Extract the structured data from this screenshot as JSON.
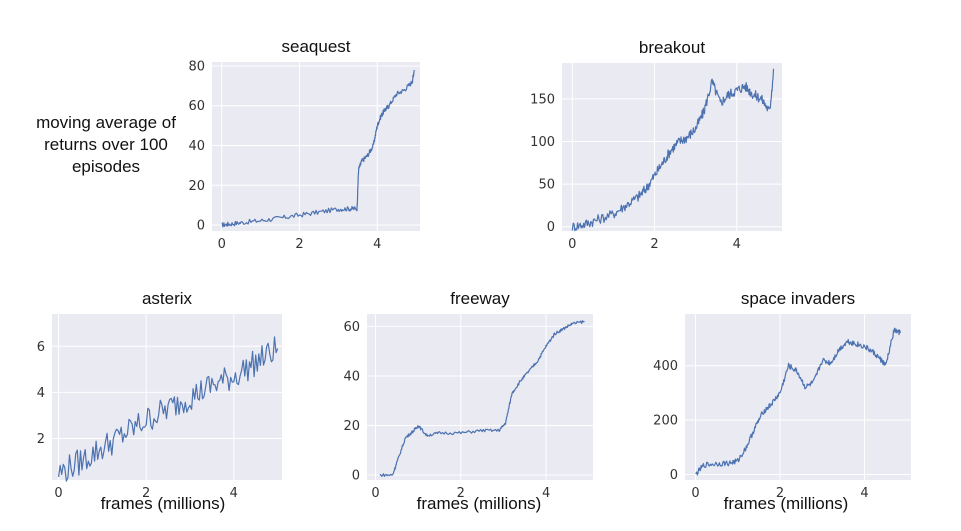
{
  "figure": {
    "ylabel_lines": [
      "moving average of",
      "returns over 100",
      "episodes"
    ],
    "xlabel": "frames (millions)"
  },
  "colors": {
    "line": "#4c72b0",
    "panel": "#eaeaf2",
    "grid": "#ffffff",
    "text": "#333333"
  },
  "chart_data": [
    {
      "type": "line",
      "title": "seaquest",
      "xlabel": "",
      "ylabel": "moving average of returns over 100 episodes",
      "xlim": [
        -0.25,
        5.1
      ],
      "ylim": [
        -3,
        82
      ],
      "grid": true,
      "xticks": [
        0,
        2,
        4
      ],
      "yticks": [
        0,
        20,
        40,
        60,
        80
      ],
      "series": [
        {
          "x": [
            0,
            0.2,
            0.5,
            1.0,
            1.5,
            2.0,
            2.5,
            3.0,
            3.3,
            3.48,
            3.52,
            3.6,
            3.75,
            3.9,
            4.0,
            4.1,
            4.2,
            4.3,
            4.5,
            4.7,
            4.9,
            4.95
          ],
          "y": [
            0,
            0.5,
            1.2,
            2.2,
            3.5,
            5.0,
            6.5,
            8.0,
            8.2,
            8.3,
            28,
            32,
            35,
            40,
            50,
            55,
            58,
            60,
            66,
            68,
            72,
            78
          ],
          "noise": 1.2
        }
      ]
    },
    {
      "type": "line",
      "title": "breakout",
      "xlabel": "",
      "ylabel": "",
      "xlim": [
        -0.25,
        5.1
      ],
      "ylim": [
        -5,
        192
      ],
      "grid": true,
      "xticks": [
        0,
        2,
        4
      ],
      "yticks": [
        0,
        50,
        100,
        150
      ],
      "series": [
        {
          "x": [
            0,
            0.3,
            0.6,
            1.0,
            1.3,
            1.6,
            1.8,
            2.0,
            2.2,
            2.4,
            2.6,
            2.8,
            3.0,
            3.2,
            3.4,
            3.6,
            3.8,
            4.0,
            4.2,
            4.4,
            4.6,
            4.8,
            4.9
          ],
          "y": [
            0,
            3,
            8,
            15,
            25,
            35,
            45,
            60,
            75,
            90,
            100,
            105,
            115,
            135,
            170,
            145,
            155,
            160,
            165,
            155,
            150,
            135,
            185
          ],
          "noise": 6
        }
      ]
    },
    {
      "type": "line",
      "title": "asterix",
      "xlabel": "frames (millions)",
      "ylabel": "",
      "xlim": [
        -0.15,
        5.1
      ],
      "ylim": [
        0.2,
        7.4
      ],
      "grid": true,
      "xticks": [
        0,
        2,
        4
      ],
      "yticks": [
        2,
        4,
        6
      ],
      "series": [
        {
          "x": [
            0,
            0.5,
            1.0,
            1.5,
            2.0,
            2.5,
            3.0,
            3.5,
            4.0,
            4.5,
            5.0
          ],
          "y": [
            0.5,
            1.0,
            1.6,
            2.2,
            2.8,
            3.3,
            3.8,
            4.3,
            4.7,
            5.3,
            5.9
          ],
          "noise": 0.6
        }
      ]
    },
    {
      "type": "line",
      "title": "freeway",
      "xlabel": "frames (millions)",
      "ylabel": "",
      "xlim": [
        -0.2,
        5.1
      ],
      "ylim": [
        -2,
        65
      ],
      "grid": true,
      "xticks": [
        0,
        2,
        4
      ],
      "yticks": [
        0,
        20,
        40,
        60
      ],
      "series": [
        {
          "x": [
            0.1,
            0.4,
            0.5,
            0.7,
            0.9,
            1.0,
            1.2,
            1.5,
            2.0,
            2.5,
            2.9,
            3.05,
            3.2,
            3.4,
            3.6,
            3.8,
            4.0,
            4.2,
            4.4,
            4.6,
            4.9
          ],
          "y": [
            0,
            0,
            5,
            15,
            18,
            20,
            16,
            17,
            17,
            18,
            18,
            21,
            33,
            38,
            42,
            46,
            52,
            57,
            59,
            61,
            62
          ],
          "noise": 0.6
        }
      ]
    },
    {
      "type": "line",
      "title": "space invaders",
      "xlabel": "frames (millions)",
      "ylabel": "",
      "xlim": [
        -0.25,
        5.1
      ],
      "ylim": [
        -20,
        590
      ],
      "grid": true,
      "xticks": [
        0,
        2,
        4
      ],
      "yticks": [
        0,
        200,
        400
      ],
      "series": [
        {
          "x": [
            0,
            0.2,
            0.5,
            0.8,
            1.0,
            1.2,
            1.4,
            1.6,
            1.8,
            2.0,
            2.2,
            2.4,
            2.6,
            2.8,
            3.0,
            3.2,
            3.4,
            3.6,
            3.8,
            4.0,
            4.2,
            4.4,
            4.5,
            4.7,
            4.85
          ],
          "y": [
            0,
            35,
            40,
            42,
            50,
            100,
            170,
            230,
            260,
            300,
            400,
            380,
            320,
            340,
            420,
            410,
            460,
            490,
            480,
            470,
            450,
            420,
            400,
            530,
            520
          ],
          "noise": 10
        }
      ]
    }
  ]
}
